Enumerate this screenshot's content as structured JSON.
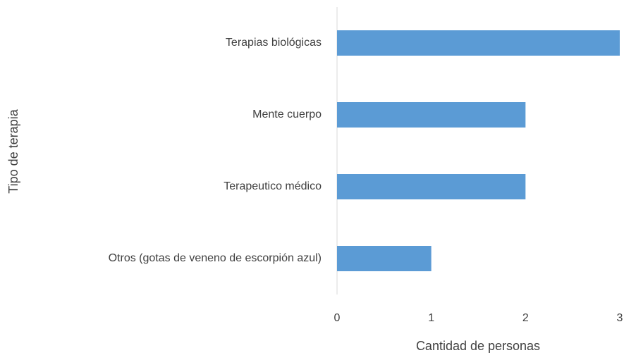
{
  "chart_data": {
    "type": "bar",
    "orientation": "horizontal",
    "categories": [
      "Terapias biológicas",
      "Mente cuerpo",
      "Terapeutico médico",
      "Otros (gotas de veneno de escorpión azul)"
    ],
    "values": [
      3,
      2,
      2,
      1
    ],
    "color": "#5b9bd5",
    "xlim": [
      0,
      3
    ],
    "xticks": [
      0,
      1,
      2,
      3
    ],
    "xlabel": "Cantidad de personas",
    "ylabel": "Tipo de terapia",
    "grid": false
  }
}
